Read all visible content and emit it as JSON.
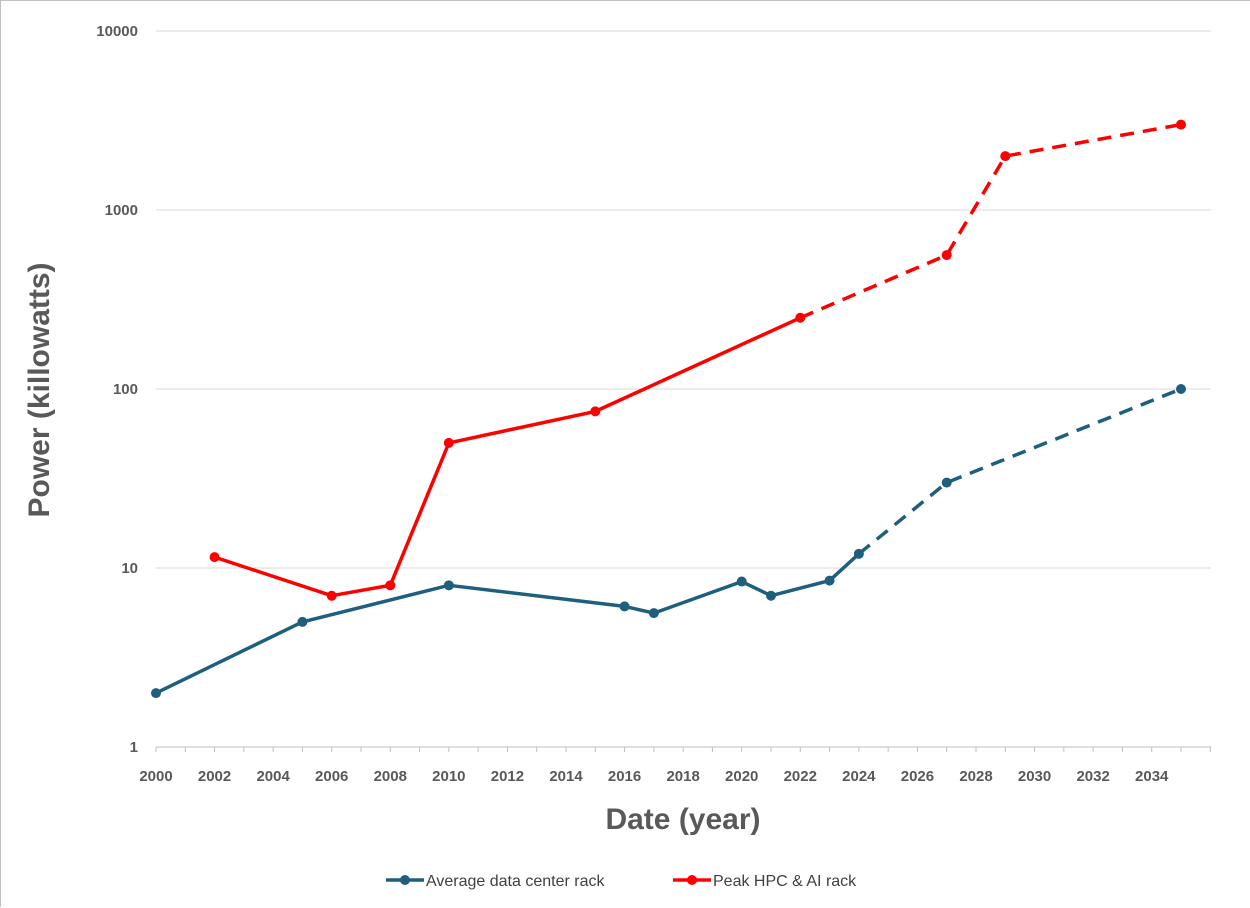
{
  "chart_data": {
    "type": "line",
    "title": "",
    "xlabel": "Date (year)",
    "ylabel": "Power (killowatts)",
    "yscale": "log",
    "ylim": [
      1,
      10000
    ],
    "xlim": [
      2000,
      2036
    ],
    "y_ticks": [
      1,
      10,
      100,
      1000,
      10000
    ],
    "x_ticks": [
      2000,
      2002,
      2004,
      2006,
      2008,
      2010,
      2012,
      2014,
      2016,
      2018,
      2020,
      2022,
      2024,
      2026,
      2028,
      2030,
      2032,
      2034
    ],
    "grid": "horizontal",
    "legend_position": "bottom",
    "series": [
      {
        "name": "Average data center rack",
        "color": "#1f5f7e",
        "marker": "circle",
        "actual": {
          "x": [
            2000,
            2005,
            2010,
            2016,
            2017,
            2020,
            2021,
            2023,
            2024
          ],
          "y": [
            2,
            5,
            8,
            6.1,
            5.6,
            8.4,
            7,
            8.5,
            12
          ]
        },
        "projected": {
          "x": [
            2024,
            2027,
            2035
          ],
          "y": [
            12,
            30,
            100
          ]
        }
      },
      {
        "name": "Peak HPC & AI rack",
        "color": "#ff0000",
        "marker": "circle",
        "actual": {
          "x": [
            2002,
            2006,
            2008,
            2010,
            2015,
            2022
          ],
          "y": [
            11.5,
            7,
            8,
            50,
            75,
            250
          ]
        },
        "projected": {
          "x": [
            2022,
            2027,
            2029,
            2035
          ],
          "y": [
            250,
            560,
            2000,
            3000
          ]
        }
      }
    ]
  }
}
